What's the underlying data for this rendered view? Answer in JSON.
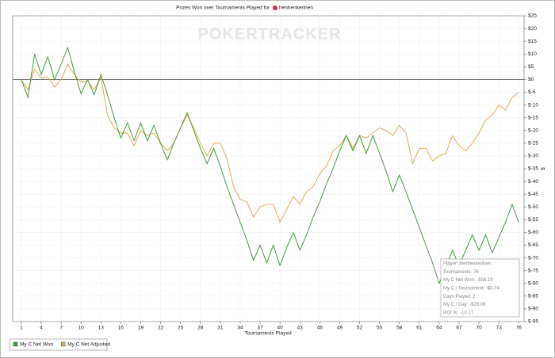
{
  "chart_data": {
    "type": "line",
    "title": "Prizes Won over Tournaments Played for",
    "player": "henhenkenhen",
    "watermark": "POKERTRACKER",
    "x_label": "Tournaments Played",
    "y_label": "$",
    "x": [
      1,
      2,
      3,
      4,
      5,
      6,
      7,
      8,
      9,
      10,
      11,
      12,
      13,
      14,
      15,
      16,
      17,
      18,
      19,
      20,
      21,
      22,
      23,
      24,
      25,
      26,
      27,
      28,
      29,
      30,
      31,
      32,
      33,
      34,
      35,
      36,
      37,
      38,
      39,
      40,
      41,
      42,
      43,
      44,
      45,
      46,
      47,
      48,
      49,
      50,
      51,
      52,
      53,
      54,
      55,
      56,
      57,
      58,
      59,
      60,
      61,
      62,
      63,
      64,
      65,
      66,
      67,
      68,
      69,
      70,
      71,
      72,
      73,
      74,
      75,
      76
    ],
    "series": [
      {
        "name": "My C Net Won",
        "color": "#3aa335",
        "values": [
          0,
          -7,
          10,
          2,
          9,
          0,
          6,
          12.5,
          3,
          -5.5,
          0,
          -6,
          2,
          -6,
          -15,
          -23,
          -17,
          -24,
          -17,
          -24,
          -18,
          -25,
          -31.5,
          -25,
          -19,
          -13,
          -20,
          -27,
          -33,
          -27,
          -34,
          -42,
          -49,
          -56,
          -63,
          -71,
          -65,
          -72,
          -65,
          -73,
          -66,
          -60,
          -67,
          -61,
          -54,
          -48,
          -41,
          -35,
          -28,
          -22,
          -28,
          -22,
          -29,
          -22,
          -29,
          -36,
          -44,
          -37.5,
          -44,
          -51,
          -58,
          -65,
          -72,
          -80,
          -74,
          -67,
          -73,
          -67,
          -61,
          -67,
          -61,
          -68,
          -62,
          -56,
          -49,
          -56
        ]
      },
      {
        "name": "My C Net Adjusted",
        "color": "#f0a550",
        "values": [
          0,
          -4,
          4,
          0.5,
          1,
          -3,
          0,
          6,
          2,
          -1,
          -0.5,
          -4,
          1,
          -14,
          -19,
          -21,
          -21,
          -26,
          -20,
          -22,
          -21,
          -25,
          -28,
          -25,
          -19,
          -14,
          -19,
          -25,
          -30,
          -25,
          -25,
          -31,
          -42,
          -47,
          -48,
          -54,
          -50,
          -49,
          -49,
          -56,
          -51,
          -46,
          -49,
          -44,
          -42,
          -37,
          -34,
          -28,
          -26,
          -22,
          -27,
          -22,
          -23,
          -21,
          -19,
          -20,
          -22,
          -18,
          -21,
          -33,
          -27,
          -27,
          -32,
          -30,
          -29,
          -22,
          -26,
          -28,
          -25,
          -21,
          -16,
          -14,
          -10,
          -12,
          -7,
          -5
        ]
      }
    ],
    "xlim": [
      -0.3,
      76.8
    ],
    "xticks": [
      1,
      4,
      7,
      10,
      13,
      16,
      19,
      22,
      25,
      28,
      31,
      34,
      37,
      40,
      43,
      46,
      49,
      52,
      55,
      58,
      61,
      64,
      67,
      70,
      73,
      76
    ],
    "ylim": [
      -95,
      25
    ],
    "yticks": [
      {
        "value": 25,
        "label": "$25"
      },
      {
        "value": 20,
        "label": "$20"
      },
      {
        "value": 15,
        "label": "$15"
      },
      {
        "value": 10,
        "label": "$10"
      },
      {
        "value": 5,
        "label": "$5"
      },
      {
        "value": 0,
        "label": "$0"
      },
      {
        "value": -5,
        "label": "$-5"
      },
      {
        "value": -10,
        "label": "$-10"
      },
      {
        "value": -15,
        "label": "$-15"
      },
      {
        "value": -20,
        "label": "$-20"
      },
      {
        "value": -25,
        "label": "$-25"
      },
      {
        "value": -30,
        "label": "$-30"
      },
      {
        "value": -35,
        "label": "$-35"
      },
      {
        "value": -40,
        "label": "$-40"
      },
      {
        "value": -45,
        "label": "$-45"
      },
      {
        "value": -50,
        "label": "$-50"
      },
      {
        "value": -55,
        "label": "$-55"
      },
      {
        "value": -60,
        "label": "$-60"
      },
      {
        "value": -65,
        "label": "$-65"
      },
      {
        "value": -70,
        "label": "$-70"
      },
      {
        "value": -75,
        "label": "$-75"
      },
      {
        "value": -80,
        "label": "$-80"
      },
      {
        "value": -85,
        "label": "$-85"
      },
      {
        "value": -90,
        "label": "$-90"
      },
      {
        "value": -95,
        "label": "$-95"
      }
    ],
    "grid": true,
    "legend": "bottom-left",
    "tooltip": [
      "Player: henhenkenhen",
      "Tournaments: 76",
      "My C Net Won: -$56.19",
      "My C / Tournament: -$0.74",
      "Days Played: 2",
      "My C / Day: -$28.09",
      "ROI %: -10.17"
    ]
  }
}
